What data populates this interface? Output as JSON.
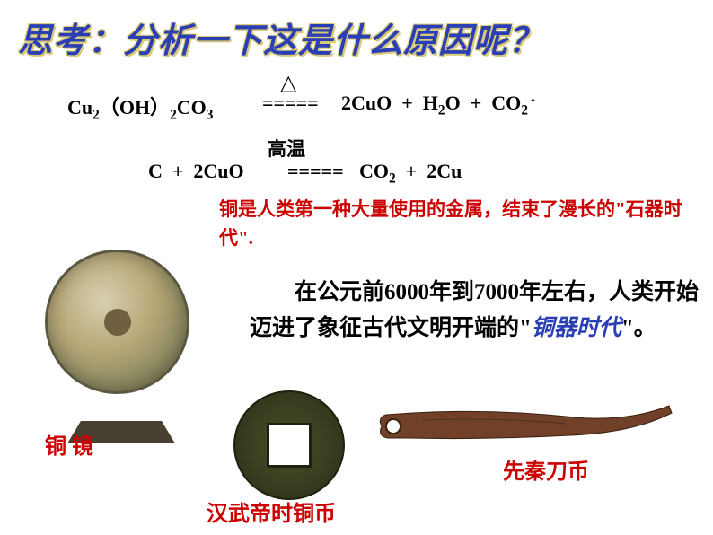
{
  "title": "思考：分析一下这是什么原因呢？",
  "equations": {
    "eq1_left": "Cu<sub>2</sub>（OH）<sub>2</sub>CO<sub>3</sub>",
    "eq1_arrow": "=====",
    "triangle": "△",
    "eq1_right": "2CuO&nbsp;&nbsp;+&nbsp;&nbsp;H<sub>2</sub>O&nbsp;&nbsp;+&nbsp;&nbsp;CO<sub>2</sub>↑",
    "eq2_left": "C&nbsp;&nbsp;+&nbsp;&nbsp;2CuO",
    "eq2_condition": "高温",
    "eq2_arrow": "=====",
    "eq2_right": "CO<sub>2</sub>&nbsp;&nbsp;+&nbsp;&nbsp;2Cu"
  },
  "copper_info": "铜是人类第一种大量使用的金属，结束了漫长的\"石器时代\".",
  "main_text_prefix": "　　在公元前6000年到7000年左右，人类开始迈进了象征古代文明开端的\"",
  "bronze_era": "铜器时代",
  "main_text_suffix": "\"。",
  "labels": {
    "mirror": "铜 镜",
    "coin": "汉武帝时铜币",
    "knife": "先秦刀币"
  },
  "colors": {
    "title_color": "#2b3fb5",
    "title_shadow": "#d8c878",
    "red_text": "#cc0000",
    "bronze_era_color": "#2b3fb5",
    "mirror_tone": "#b8a878",
    "coin_tone": "#3a4020",
    "knife_tone": "#704028"
  }
}
